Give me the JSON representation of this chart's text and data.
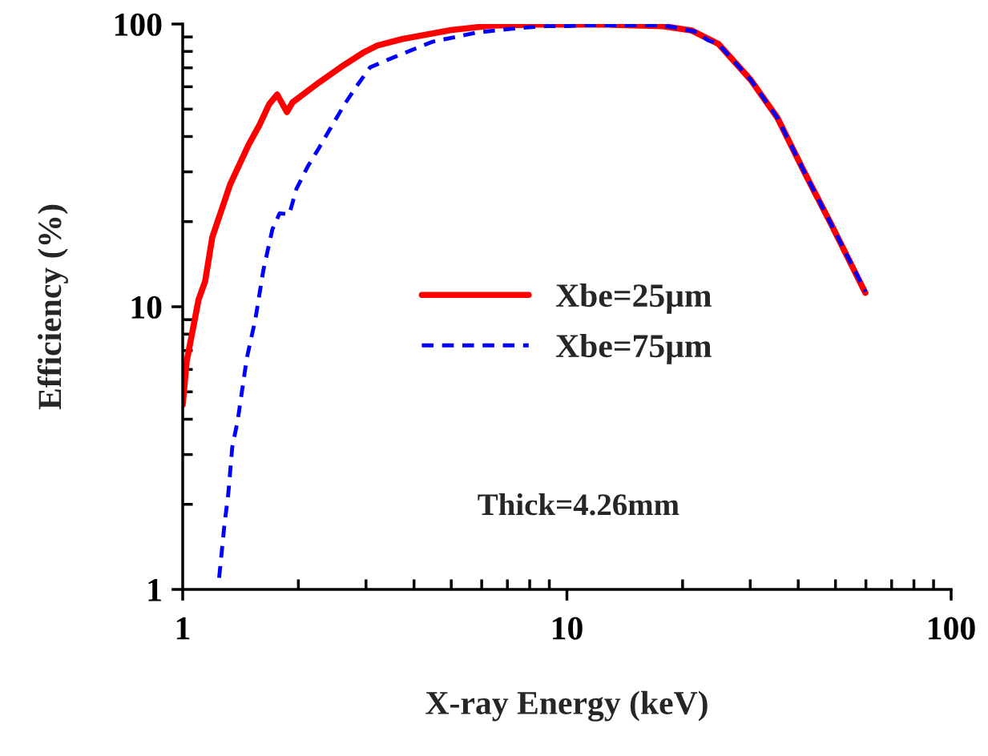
{
  "chart_data": {
    "type": "line",
    "xlabel": "X-ray Energy (keV)",
    "ylabel": "Efficiency (%)",
    "log": "xy",
    "xlim": [
      1,
      100
    ],
    "ylim": [
      1,
      100
    ],
    "xticks": [
      1,
      10,
      100
    ],
    "yticks": [
      1,
      10,
      100
    ],
    "grid": false,
    "legend": "center",
    "annotations": [
      "Thick=4.26mm"
    ],
    "series": [
      {
        "name": "Xbe=25μm",
        "color": "#ff0000",
        "line_style": "solid",
        "x": [
          1.0,
          1.024,
          1.1,
          1.144,
          1.194,
          1.328,
          1.483,
          1.585,
          1.68,
          1.762,
          1.867,
          1.931,
          2.262,
          2.575,
          2.945,
          3.21,
          3.746,
          4.997,
          6.38,
          8.32,
          12.87,
          17.75,
          21.1,
          24.8,
          30.1,
          35.3,
          41.3,
          48.7,
          59.8
        ],
        "values": [
          4.5,
          6.4,
          10.6,
          12.3,
          17.6,
          27.0,
          37.3,
          44.0,
          52.1,
          56.3,
          48.8,
          52.8,
          62.1,
          70.3,
          79.1,
          83.9,
          88.6,
          95.2,
          98.7,
          99.5,
          99.5,
          98.3,
          94.9,
          85.0,
          63.4,
          46.6,
          30.3,
          19.6,
          11.2
        ]
      },
      {
        "name": "Xbe=75μm",
        "color": "#0000ff",
        "line_style": "dashed",
        "x": [
          1.244,
          1.284,
          1.315,
          1.346,
          1.39,
          1.469,
          1.545,
          1.622,
          1.712,
          1.788,
          1.893,
          1.977,
          2.115,
          2.262,
          2.41,
          2.64,
          2.816,
          3.076,
          3.587,
          4.474,
          5.83,
          7.11,
          7.84,
          8.89,
          10.02,
          11.14,
          16.9,
          18.6,
          21.8,
          23.2,
          24.8,
          30.1,
          35.3,
          41.3,
          48.7,
          59.8
        ],
        "values": [
          1.1,
          1.69,
          2.2,
          3.19,
          3.95,
          6.59,
          9.0,
          13.5,
          18.8,
          21.4,
          21.2,
          26.1,
          31.3,
          36.4,
          42.2,
          52.1,
          59.5,
          70.3,
          76.8,
          86.6,
          93.3,
          96.1,
          97.2,
          98.3,
          98.3,
          99,
          99,
          97.9,
          93.7,
          87.8,
          85.0,
          63.4,
          46.6,
          30.3,
          19.6,
          11.3
        ]
      }
    ]
  }
}
